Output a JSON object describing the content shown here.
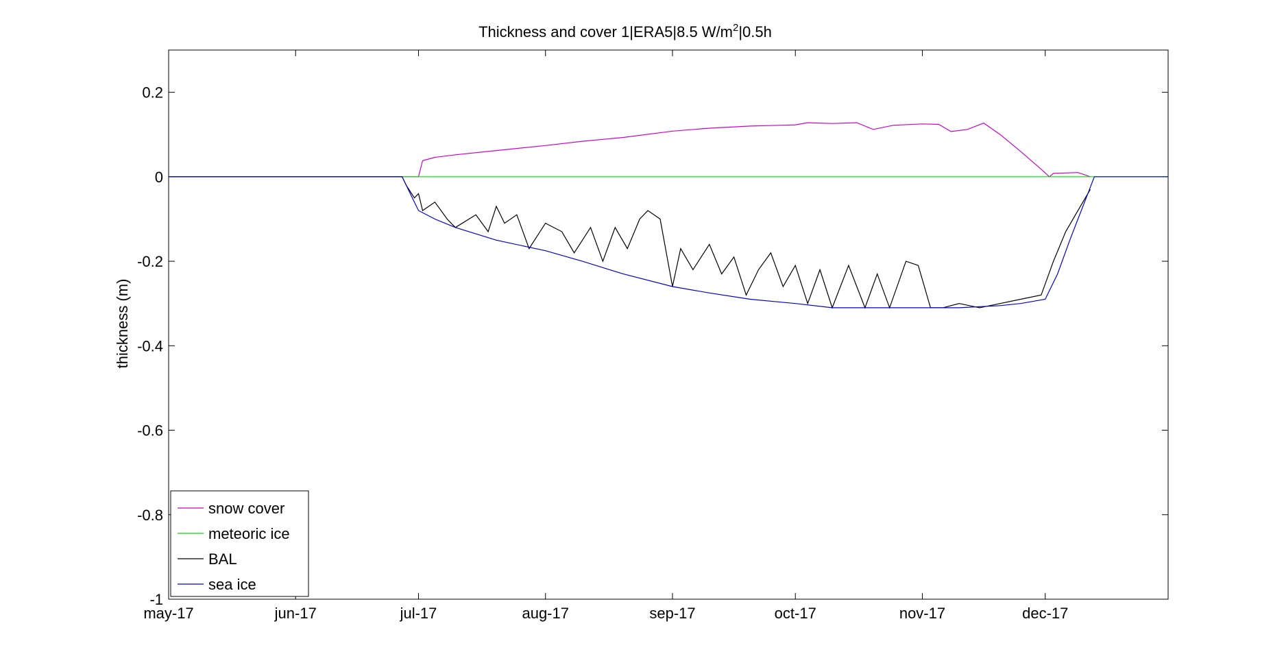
{
  "chart_data": {
    "type": "line",
    "title": "Thickness and cover 1|ERA5|8.5 W/m",
    "title_superscript": "2",
    "title_suffix": "|0.5h",
    "xlabel": "",
    "ylabel": "thickness (m)",
    "xlim": [
      "2017-05-01",
      "2017-12-31"
    ],
    "ylim": [
      -1,
      0.3
    ],
    "x_ticks": [
      "2017-05-01",
      "2017-06-01",
      "2017-07-01",
      "2017-08-01",
      "2017-09-01",
      "2017-10-01",
      "2017-11-01",
      "2017-12-01"
    ],
    "x_tick_labels": [
      "may-17",
      "jun-17",
      "jul-17",
      "aug-17",
      "sep-17",
      "oct-17",
      "nov-17",
      "dec-17"
    ],
    "y_ticks": [
      0.2,
      0,
      -0.2,
      -0.4,
      -0.6,
      -0.8,
      -1
    ],
    "y_tick_labels": [
      "0.2",
      "0",
      "-0.2",
      "-0.4",
      "-0.6",
      "-0.8",
      "-1"
    ],
    "grid": false,
    "legend_position": "bottom-left",
    "series": [
      {
        "name": "snow cover",
        "color": "#cc00cc",
        "x": [
          "2017-05-01",
          "2017-06-27",
          "2017-07-01",
          "2017-07-02",
          "2017-07-05",
          "2017-07-10",
          "2017-07-20",
          "2017-08-01",
          "2017-08-10",
          "2017-08-20",
          "2017-09-01",
          "2017-09-10",
          "2017-09-20",
          "2017-10-01",
          "2017-10-04",
          "2017-10-10",
          "2017-10-16",
          "2017-10-20",
          "2017-10-25",
          "2017-11-01",
          "2017-11-05",
          "2017-11-08",
          "2017-11-12",
          "2017-11-16",
          "2017-11-20",
          "2017-11-25",
          "2017-11-30",
          "2017-12-02",
          "2017-12-03",
          "2017-12-09",
          "2017-12-12"
        ],
        "y": [
          0,
          0,
          0,
          0.038,
          0.046,
          0.052,
          0.062,
          0.074,
          0.084,
          0.093,
          0.108,
          0.115,
          0.12,
          0.123,
          0.128,
          0.126,
          0.128,
          0.112,
          0.122,
          0.125,
          0.124,
          0.107,
          0.112,
          0.127,
          0.1,
          0.06,
          0.018,
          0,
          0.008,
          0.01,
          0
        ]
      },
      {
        "name": "meteoric ice",
        "color": "#00dd00",
        "x": [
          "2017-05-01",
          "2017-12-31"
        ],
        "y": [
          0,
          0
        ]
      },
      {
        "name": "BAL",
        "color": "#000000",
        "x": [
          "2017-05-01",
          "2017-06-27",
          "2017-06-28",
          "2017-06-30",
          "2017-07-01",
          "2017-07-02",
          "2017-07-05",
          "2017-07-08",
          "2017-07-10",
          "2017-07-15",
          "2017-07-18",
          "2017-07-20",
          "2017-07-22",
          "2017-07-25",
          "2017-07-28",
          "2017-08-01",
          "2017-08-05",
          "2017-08-08",
          "2017-08-12",
          "2017-08-15",
          "2017-08-18",
          "2017-08-21",
          "2017-08-24",
          "2017-08-26",
          "2017-08-29",
          "2017-09-01",
          "2017-09-03",
          "2017-09-06",
          "2017-09-10",
          "2017-09-13",
          "2017-09-16",
          "2017-09-19",
          "2017-09-22",
          "2017-09-25",
          "2017-09-28",
          "2017-10-01",
          "2017-10-04",
          "2017-10-07",
          "2017-10-10",
          "2017-10-14",
          "2017-10-18",
          "2017-10-21",
          "2017-10-24",
          "2017-10-28",
          "2017-10-31",
          "2017-11-03",
          "2017-11-06",
          "2017-11-10",
          "2017-11-15",
          "2017-11-20",
          "2017-11-25",
          "2017-11-30",
          "2017-12-03",
          "2017-12-06",
          "2017-12-09",
          "2017-12-12"
        ],
        "y": [
          0,
          0,
          -0.02,
          -0.05,
          -0.04,
          -0.08,
          -0.06,
          -0.1,
          -0.12,
          -0.09,
          -0.13,
          -0.07,
          -0.11,
          -0.09,
          -0.17,
          -0.11,
          -0.13,
          -0.18,
          -0.12,
          -0.2,
          -0.12,
          -0.17,
          -0.1,
          -0.08,
          -0.1,
          -0.26,
          -0.17,
          -0.22,
          -0.16,
          -0.23,
          -0.19,
          -0.28,
          -0.22,
          -0.18,
          -0.26,
          -0.21,
          -0.3,
          -0.22,
          -0.31,
          -0.21,
          -0.31,
          -0.23,
          -0.31,
          -0.2,
          -0.21,
          -0.31,
          -0.31,
          -0.3,
          -0.31,
          -0.3,
          -0.29,
          -0.28,
          -0.2,
          -0.13,
          -0.08,
          -0.03
        ]
      },
      {
        "name": "sea ice",
        "color": "#0000cc",
        "x": [
          "2017-05-01",
          "2017-06-27",
          "2017-06-29",
          "2017-07-01",
          "2017-07-05",
          "2017-07-10",
          "2017-07-20",
          "2017-08-01",
          "2017-08-10",
          "2017-08-20",
          "2017-09-01",
          "2017-09-10",
          "2017-09-20",
          "2017-10-01",
          "2017-10-10",
          "2017-10-20",
          "2017-11-01",
          "2017-11-10",
          "2017-11-20",
          "2017-11-25",
          "2017-12-01",
          "2017-12-04",
          "2017-12-07",
          "2017-12-09",
          "2017-12-11",
          "2017-12-13",
          "2017-12-31"
        ],
        "y": [
          0,
          0,
          -0.04,
          -0.08,
          -0.1,
          -0.12,
          -0.15,
          -0.175,
          -0.2,
          -0.23,
          -0.26,
          -0.275,
          -0.29,
          -0.3,
          -0.31,
          -0.31,
          -0.31,
          -0.31,
          -0.305,
          -0.3,
          -0.29,
          -0.23,
          -0.15,
          -0.1,
          -0.05,
          0,
          0
        ]
      }
    ]
  }
}
